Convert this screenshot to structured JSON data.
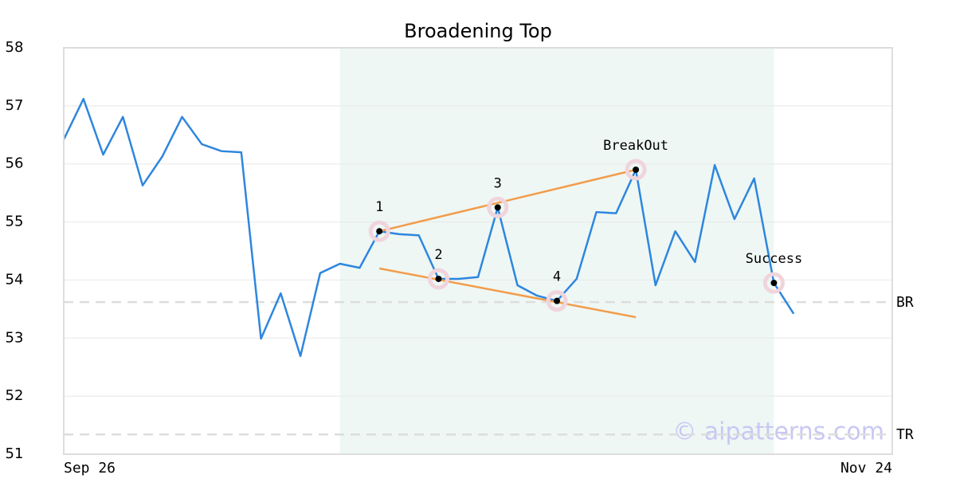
{
  "chart_data": {
    "type": "line",
    "title": "Broadening Top",
    "xlim": [
      0,
      42
    ],
    "xticks": [
      {
        "value": 0,
        "label": "Sep 26"
      },
      {
        "value": 42,
        "label": "Nov 24"
      }
    ],
    "ylim": [
      51,
      58
    ],
    "yticks": [
      51,
      52,
      53,
      54,
      55,
      56,
      57,
      58
    ],
    "grid": true,
    "highlight": [
      14,
      36
    ],
    "highlight_color": "#eef7f4",
    "series": [
      {
        "color": "#2e86de",
        "x": [
          0,
          1,
          2,
          3,
          4,
          5,
          6,
          7,
          8,
          9,
          10,
          11,
          12,
          13,
          14,
          15,
          16,
          17,
          18,
          19,
          20,
          21,
          22,
          23,
          24,
          25,
          26,
          27,
          28,
          29,
          30,
          31,
          32,
          33,
          34,
          35,
          36,
          37
        ],
        "values": [
          56.42,
          57.12,
          56.16,
          56.81,
          55.63,
          56.13,
          56.81,
          56.34,
          56.22,
          56.2,
          52.99,
          53.77,
          52.69,
          54.12,
          54.28,
          54.21,
          54.84,
          54.79,
          54.77,
          54.02,
          54.02,
          54.05,
          55.25,
          53.91,
          53.73,
          53.64,
          54.02,
          55.17,
          55.15,
          55.9,
          53.91,
          54.84,
          54.31,
          55.98,
          55.05,
          55.75,
          53.95,
          53.42
        ]
      }
    ],
    "ref_lines": [
      {
        "name": "BR",
        "value": 53.62
      },
      {
        "name": "TR",
        "value": 51.34
      }
    ],
    "trendlines": [
      {
        "color": "#f39c4a",
        "x": [
          16,
          29
        ],
        "values": [
          54.84,
          55.9
        ]
      },
      {
        "color": "#f39c4a",
        "x": [
          16,
          29
        ],
        "values": [
          54.2,
          53.36
        ]
      }
    ],
    "points": [
      {
        "label": "1",
        "x": 16,
        "value": 54.84
      },
      {
        "label": "2",
        "x": 19,
        "value": 54.02
      },
      {
        "label": "3",
        "x": 22,
        "value": 55.25
      },
      {
        "label": "4",
        "x": 25,
        "value": 53.64
      },
      {
        "label": "BreakOut",
        "x": 29,
        "value": 55.9
      },
      {
        "label": "Success",
        "x": 36,
        "value": 53.95
      }
    ],
    "watermark": "© aipatterns.com"
  }
}
